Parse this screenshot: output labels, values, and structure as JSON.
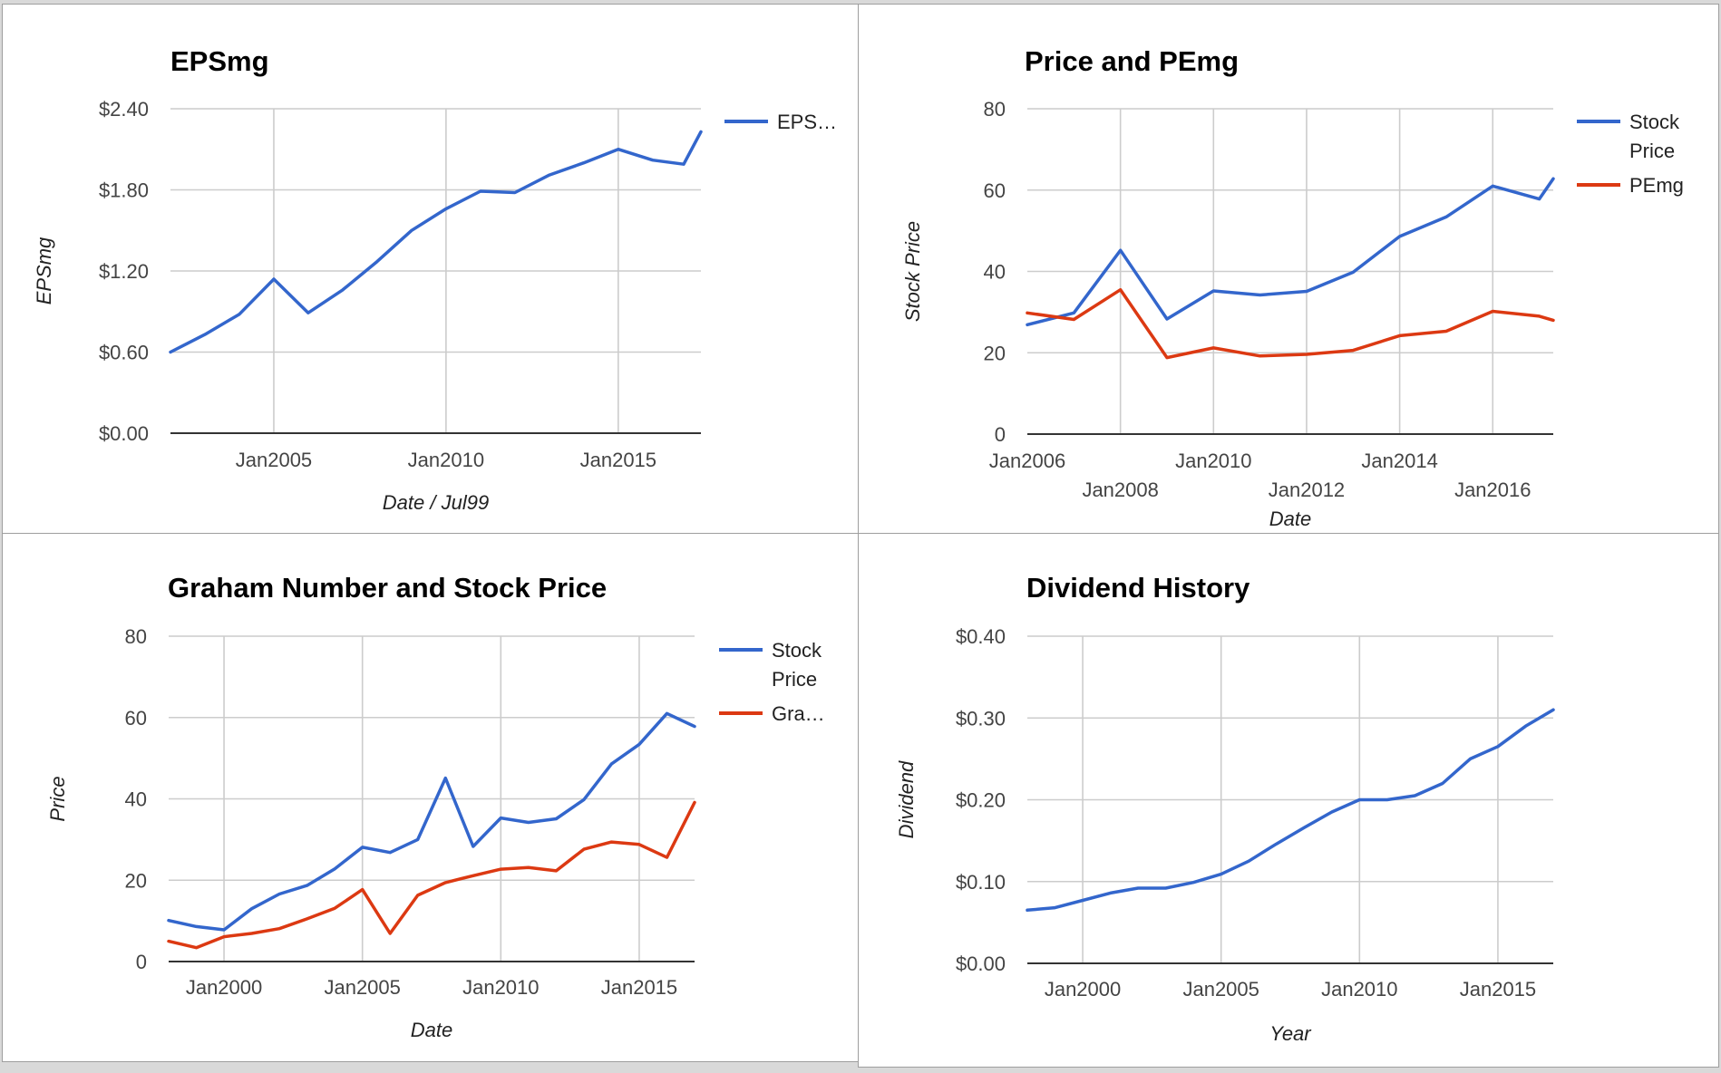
{
  "colors": {
    "blue": "#3366cc",
    "red": "#dc3912"
  },
  "chart_data": [
    {
      "type": "line",
      "title": "EPSmg",
      "xlabel": "Date / Jul99",
      "ylabel": "EPSmg",
      "ylim": [
        0,
        2.4
      ],
      "yticks": [
        {
          "value": 0,
          "label": "$0.00"
        },
        {
          "value": 0.6,
          "label": "$0.60"
        },
        {
          "value": 1.2,
          "label": "$1.20"
        },
        {
          "value": 1.8,
          "label": "$1.80"
        },
        {
          "value": 2.4,
          "label": "$2.40"
        }
      ],
      "xlim": [
        2002,
        2017.4
      ],
      "xticks": [
        {
          "value": 2005,
          "label": "Jan2005",
          "row": 0
        },
        {
          "value": 2010,
          "label": "Jan2010",
          "row": 0
        },
        {
          "value": 2015,
          "label": "Jan2015",
          "row": 0
        }
      ],
      "grid": true,
      "legend": "right",
      "series": [
        {
          "name": "EPS…",
          "color": "#3366cc",
          "x": [
            2002,
            2003,
            2004,
            2005,
            2006,
            2007,
            2008,
            2009,
            2010,
            2011,
            2012,
            2013,
            2014,
            2015,
            2016,
            2016.9,
            2017.4
          ],
          "y": [
            0.6,
            0.73,
            0.88,
            1.14,
            0.89,
            1.06,
            1.27,
            1.5,
            1.66,
            1.79,
            1.78,
            1.91,
            2.0,
            2.1,
            2.02,
            1.99,
            2.23
          ]
        }
      ]
    },
    {
      "type": "line",
      "title": "Price and PEmg",
      "xlabel": "Date",
      "ylabel": "Stock Price",
      "ylim": [
        0,
        80
      ],
      "yticks": [
        {
          "value": 0,
          "label": "0"
        },
        {
          "value": 20,
          "label": "20"
        },
        {
          "value": 40,
          "label": "40"
        },
        {
          "value": 60,
          "label": "60"
        },
        {
          "value": 80,
          "label": "80"
        }
      ],
      "xlim": [
        2006,
        2017.3
      ],
      "xticks": [
        {
          "value": 2006,
          "label": "Jan2006",
          "row": 0
        },
        {
          "value": 2008,
          "label": "Jan2008",
          "row": 1
        },
        {
          "value": 2010,
          "label": "Jan2010",
          "row": 0
        },
        {
          "value": 2012,
          "label": "Jan2012",
          "row": 1
        },
        {
          "value": 2014,
          "label": "Jan2014",
          "row": 0
        },
        {
          "value": 2016,
          "label": "Jan2016",
          "row": 1
        }
      ],
      "grid": true,
      "legend": "right",
      "series": [
        {
          "name": "Stock Price",
          "color": "#3366cc",
          "x": [
            2006,
            2007,
            2008,
            2009,
            2010,
            2011,
            2012,
            2013,
            2014,
            2015,
            2016,
            2017,
            2017.3
          ],
          "y": [
            26.9,
            29.8,
            45.2,
            28.3,
            35.2,
            34.2,
            35.1,
            39.8,
            48.6,
            53.4,
            61.0,
            57.8,
            62.8
          ]
        },
        {
          "name": "PEmg",
          "color": "#dc3912",
          "x": [
            2006,
            2007,
            2008,
            2009,
            2010,
            2011,
            2012,
            2013,
            2014,
            2015,
            2016,
            2017,
            2017.3
          ],
          "y": [
            29.8,
            28.2,
            35.5,
            18.8,
            21.2,
            19.2,
            19.6,
            20.6,
            24.2,
            25.3,
            30.2,
            29.0,
            28.0
          ]
        }
      ]
    },
    {
      "type": "line",
      "title": "Graham Number and Stock Price",
      "xlabel": "Date",
      "ylabel": "Price",
      "ylim": [
        0,
        80
      ],
      "yticks": [
        {
          "value": 0,
          "label": "0"
        },
        {
          "value": 20,
          "label": "20"
        },
        {
          "value": 40,
          "label": "40"
        },
        {
          "value": 60,
          "label": "60"
        },
        {
          "value": 80,
          "label": "80"
        }
      ],
      "xlim": [
        1998,
        2017.0
      ],
      "xticks": [
        {
          "value": 2000,
          "label": "Jan2000",
          "row": 0
        },
        {
          "value": 2005,
          "label": "Jan2005",
          "row": 0
        },
        {
          "value": 2010,
          "label": "Jan2010",
          "row": 0
        },
        {
          "value": 2015,
          "label": "Jan2015",
          "row": 0
        }
      ],
      "grid": true,
      "legend": "right",
      "series": [
        {
          "name": "Stock Price",
          "color": "#3366cc",
          "x": [
            1998,
            1999,
            2000,
            2001,
            2002,
            2003,
            2004,
            2005,
            2006,
            2007,
            2008,
            2009,
            2010,
            2011,
            2012,
            2013,
            2014,
            2015,
            2016,
            2017
          ],
          "y": [
            10.1,
            8.6,
            7.8,
            13.0,
            16.6,
            18.7,
            22.8,
            28.1,
            26.8,
            30.0,
            45.1,
            28.3,
            35.3,
            34.2,
            35.1,
            39.8,
            48.6,
            53.4,
            61.0,
            57.8
          ]
        },
        {
          "name": "Gra…",
          "color": "#dc3912",
          "x": [
            1998,
            1999,
            2000,
            2001,
            2002,
            2003,
            2004,
            2005,
            2006,
            2007,
            2008,
            2009,
            2010,
            2011,
            2012,
            2013,
            2014,
            2015,
            2016,
            2017
          ],
          "y": [
            5.0,
            3.4,
            6.1,
            6.9,
            8.1,
            10.5,
            13.1,
            17.7,
            6.9,
            16.3,
            19.4,
            21.1,
            22.7,
            23.1,
            22.3,
            27.6,
            29.4,
            28.8,
            25.6,
            39.1
          ]
        }
      ]
    },
    {
      "type": "line",
      "title": "Dividend History",
      "xlabel": "Year",
      "ylabel": "Dividend",
      "ylim": [
        0,
        0.4
      ],
      "yticks": [
        {
          "value": 0,
          "label": "$0.00"
        },
        {
          "value": 0.1,
          "label": "$0.10"
        },
        {
          "value": 0.2,
          "label": "$0.20"
        },
        {
          "value": 0.3,
          "label": "$0.30"
        },
        {
          "value": 0.4,
          "label": "$0.40"
        }
      ],
      "xlim": [
        1998,
        2017.0
      ],
      "xticks": [
        {
          "value": 2000,
          "label": "Jan2000",
          "row": 0
        },
        {
          "value": 2005,
          "label": "Jan2005",
          "row": 0
        },
        {
          "value": 2010,
          "label": "Jan2010",
          "row": 0
        },
        {
          "value": 2015,
          "label": "Jan2015",
          "row": 0
        }
      ],
      "grid": true,
      "legend": "none",
      "series": [
        {
          "name": "",
          "color": "#3366cc",
          "x": [
            1998,
            1999,
            2000,
            2001,
            2002,
            2003,
            2004,
            2005,
            2006,
            2007,
            2008,
            2009,
            2010,
            2011,
            2012,
            2013,
            2014,
            2015,
            2016,
            2017
          ],
          "y": [
            0.065,
            0.068,
            0.077,
            0.086,
            0.092,
            0.092,
            0.099,
            0.109,
            0.125,
            0.146,
            0.166,
            0.185,
            0.2,
            0.2,
            0.205,
            0.22,
            0.25,
            0.265,
            0.29,
            0.31
          ]
        }
      ]
    }
  ]
}
